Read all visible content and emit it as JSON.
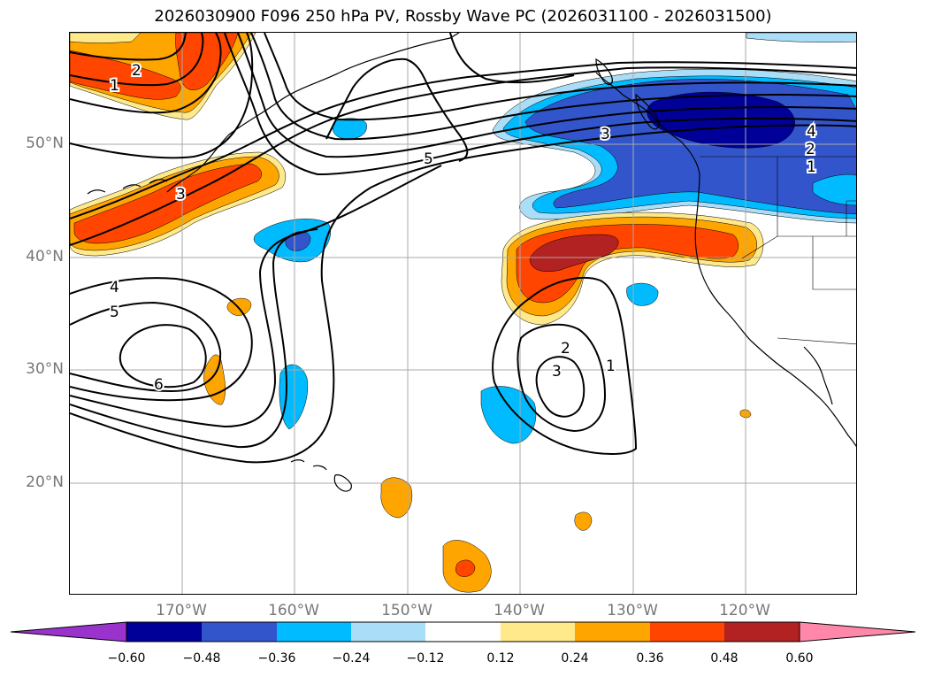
{
  "title": "2026030900 F096 250 hPa PV, Rossby Wave PC (2026031100 - 2026031500)",
  "lat_labels": [
    "50°N",
    "40°N",
    "30°N",
    "20°N"
  ],
  "lon_labels": [
    "170°W",
    "160°W",
    "150°W",
    "140°W",
    "130°W",
    "120°W"
  ],
  "contour_labels": [
    "2",
    "1",
    "3",
    "5",
    "4",
    "5",
    "6",
    "3",
    "4",
    "2",
    "1",
    "2",
    "3",
    "1"
  ],
  "colorbar": {
    "ticks": [
      "−0.60",
      "−0.48",
      "−0.36",
      "−0.24",
      "−0.12",
      "0.12",
      "0.24",
      "0.36",
      "0.48",
      "0.60"
    ],
    "colors": [
      "#9933cc",
      "#000099",
      "#3355cc",
      "#00bbff",
      "#aaddf7",
      "#ffffff",
      "#ffe98a",
      "#ffa500",
      "#ff4500",
      "#b22222",
      "#ff88aa"
    ]
  },
  "colors": {
    "neg_light": "#aaddf7",
    "neg_mid": "#00bbff",
    "neg_strong": "#3355cc",
    "neg_max": "#000099",
    "pos_light": "#ffe98a",
    "pos_mid": "#ffa500",
    "pos_strong": "#ff4500",
    "pos_max": "#b22222",
    "contour": "#000000",
    "grid": "#aaaaaa"
  }
}
